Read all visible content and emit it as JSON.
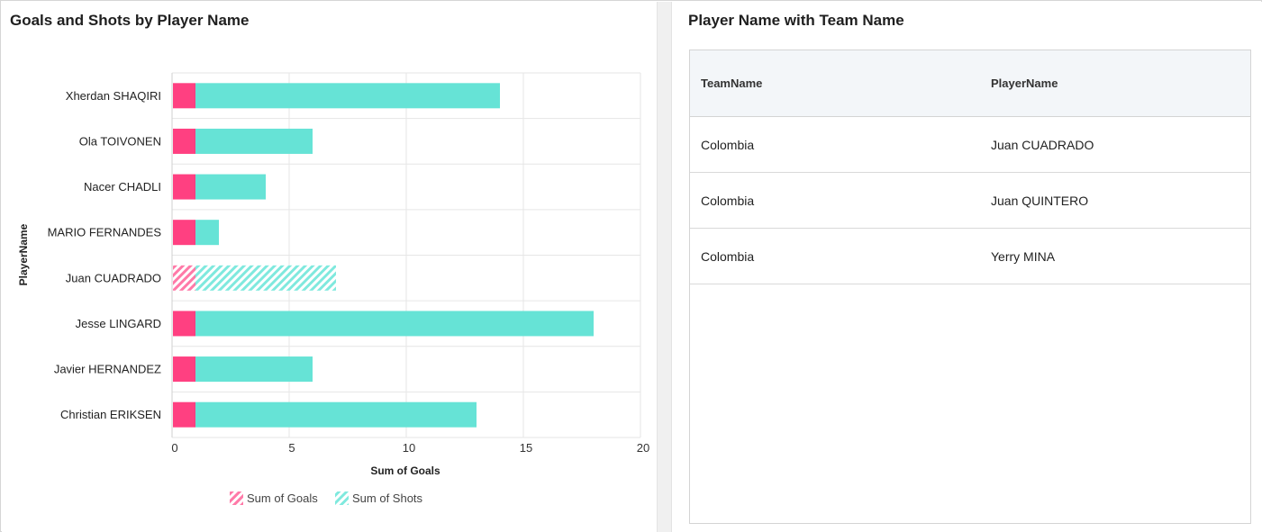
{
  "left_panel": {
    "title": "Goals and Shots by Player Name"
  },
  "right_panel": {
    "title": "Player Name with Team Name",
    "table": {
      "columns": [
        "TeamName",
        "PlayerName"
      ],
      "rows": [
        [
          "Colombia",
          "Juan CUADRADO"
        ],
        [
          "Colombia",
          "Juan QUINTERO"
        ],
        [
          "Colombia",
          "Yerry MINA"
        ]
      ]
    }
  },
  "chart_data": {
    "type": "bar",
    "orientation": "horizontal",
    "stacked": true,
    "title": "Goals and Shots by Player Name",
    "xlabel": "Sum of Goals",
    "ylabel": "PlayerName",
    "xlim": [
      0,
      20
    ],
    "xticks": [
      0,
      5,
      10,
      15,
      20
    ],
    "grid": true,
    "legend_position": "bottom",
    "categories": [
      "Xherdan SHAQIRI",
      "Ola TOIVONEN",
      "Nacer CHADLI",
      "MARIO FERNANDES",
      "Juan CUADRADO",
      "Jesse LINGARD",
      "Javier HERNANDEZ",
      "Christian ERIKSEN"
    ],
    "highlighted_category": "Juan CUADRADO",
    "series": [
      {
        "name": "Sum of Goals",
        "color": "#ff4081",
        "values": [
          1,
          1,
          1,
          1,
          1,
          1,
          1,
          1
        ]
      },
      {
        "name": "Sum of Shots",
        "color": "#66e3d6",
        "values": [
          13,
          5,
          3,
          1,
          6,
          17,
          5,
          12
        ]
      }
    ]
  }
}
